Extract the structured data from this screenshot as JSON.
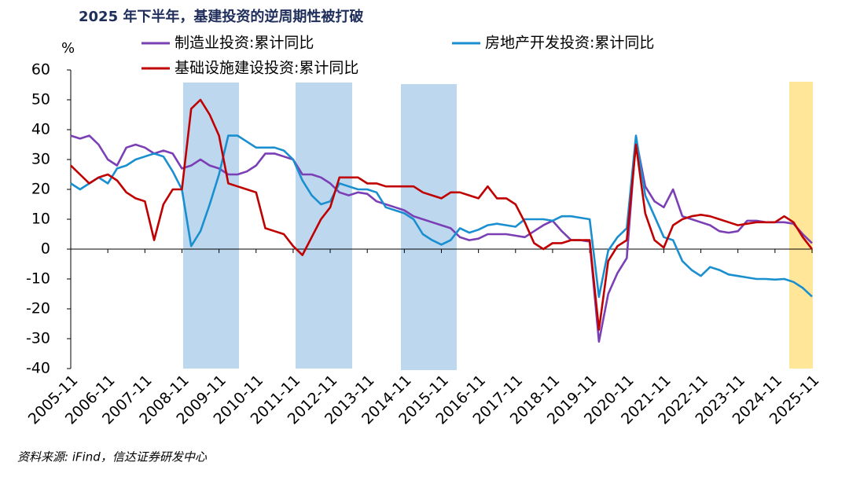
{
  "chart_data": {
    "type": "line",
    "title": "2025 年下半年，基建投资的逆周期性被打破",
    "y_label": "%",
    "source": "资料来源: iFind，信达证券研发中心",
    "categories": [
      "2005-11",
      null,
      null,
      null,
      "2006-11",
      null,
      null,
      null,
      "2007-11",
      null,
      null,
      null,
      "2008-11",
      null,
      null,
      null,
      "2009-11",
      null,
      null,
      null,
      "2010-11",
      null,
      null,
      null,
      "2011-11",
      null,
      null,
      null,
      "2012-11",
      null,
      null,
      null,
      "2013-11",
      null,
      null,
      null,
      "2014-11",
      null,
      null,
      null,
      "2015-11",
      null,
      null,
      null,
      "2016-11",
      null,
      null,
      null,
      "2017-11",
      null,
      null,
      null,
      "2018-11",
      null,
      null,
      null,
      "2019-11",
      null,
      null,
      null,
      "2020-11",
      null,
      null,
      null,
      "2021-11",
      null,
      null,
      null,
      "2022-11",
      null,
      null,
      null,
      "2023-11",
      null,
      null,
      null,
      "2024-11",
      null,
      null,
      null,
      "2025-11"
    ],
    "series": [
      {
        "name": "制造业投资:累计同比",
        "color": "#7b3fb5",
        "values": [
          38,
          37,
          38,
          35,
          30,
          28,
          34,
          35,
          34,
          32,
          33,
          32,
          27,
          28,
          30,
          28,
          27,
          25,
          25,
          26,
          28,
          32,
          32,
          31,
          30,
          25,
          25,
          24,
          22,
          19,
          18,
          19,
          18.5,
          16,
          15,
          14,
          13,
          11,
          10,
          9,
          8,
          7,
          4,
          3,
          3.5,
          5,
          5,
          5,
          4.5,
          4,
          6,
          8,
          9.5,
          6,
          3,
          3,
          2.5,
          -31,
          -15,
          -8,
          -3,
          37,
          21,
          16,
          14,
          20,
          11,
          10,
          9,
          8,
          6,
          5.5,
          6,
          9.5,
          9.5,
          9,
          9,
          9,
          8.5,
          5,
          2
        ]
      },
      {
        "name": "房地产开发投资:累计同比",
        "color": "#1a8fd0",
        "values": [
          22,
          20,
          22,
          24,
          22,
          27,
          28,
          30,
          31,
          32,
          31,
          26,
          20,
          1,
          6,
          15,
          25,
          38,
          38,
          36,
          34,
          34,
          34,
          33,
          30,
          23,
          18,
          15,
          16,
          22,
          21,
          20,
          20,
          19,
          14,
          13,
          12,
          10,
          5,
          3,
          1.5,
          3,
          7,
          5.5,
          6.5,
          8,
          8.5,
          8,
          7.5,
          10,
          10,
          10,
          9.5,
          11,
          11,
          10.5,
          10,
          -16,
          -0.5,
          4,
          7,
          38,
          18,
          11,
          4,
          3,
          -4,
          -7,
          -9,
          -6,
          -7,
          -8.5,
          -9,
          -9.5,
          -10,
          -10,
          -10.2,
          -10,
          -11,
          -13,
          -15.9
        ]
      },
      {
        "name": "基础设施建设投资:累计同比",
        "color": "#c00000",
        "values": [
          28,
          25,
          22,
          24,
          25,
          23,
          19,
          17,
          16,
          3,
          15,
          20,
          20,
          47,
          50,
          45,
          38,
          22,
          21,
          20,
          19,
          7,
          6,
          5,
          1,
          -2,
          4,
          10,
          14,
          24,
          24,
          24,
          22,
          22,
          21,
          21,
          21,
          21,
          19,
          18,
          17,
          19,
          19,
          18,
          17,
          21,
          17,
          17,
          15,
          9,
          2,
          0,
          2,
          2,
          3,
          3,
          3,
          -27,
          -4,
          1,
          3,
          35,
          12,
          3,
          0.5,
          8,
          10,
          11,
          11.5,
          11,
          10,
          9,
          8,
          8.5,
          9,
          9,
          9,
          11,
          9,
          4,
          0
        ]
      }
    ],
    "ylim": [
      -40,
      60
    ],
    "yticks": [
      -40,
      -30,
      -20,
      -10,
      0,
      10,
      20,
      30,
      40,
      50,
      60
    ]
  }
}
